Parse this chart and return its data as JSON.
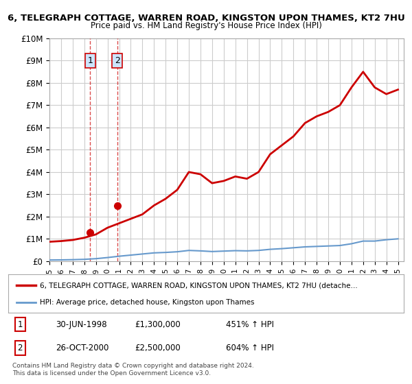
{
  "title1": "6, TELEGRAPH COTTAGE, WARREN ROAD, KINGSTON UPON THAMES, KT2 7HU",
  "title2": "Price paid vs. HM Land Registry's House Price Index (HPI)",
  "sale_dates": [
    "1998-06-30",
    "2000-10-26"
  ],
  "sale_prices": [
    1300000,
    2500000
  ],
  "sale_labels": [
    "1",
    "2"
  ],
  "table_rows": [
    [
      "1",
      "30-JUN-1998",
      "£1,300,000",
      "451% ↑ HPI"
    ],
    [
      "2",
      "26-OCT-2000",
      "£2,500,000",
      "604% ↑ HPI"
    ]
  ],
  "legend_line1": "6, TELEGRAPH COTTAGE, WARREN ROAD, KINGSTON UPON THAMES, KT2 7HU (detache…",
  "legend_line2": "HPI: Average price, detached house, Kingston upon Thames",
  "footnote": "Contains HM Land Registry data © Crown copyright and database right 2024.\nThis data is licensed under the Open Government Licence v3.0.",
  "line_color": "#cc0000",
  "hpi_color": "#6699cc",
  "background_color": "#ffffff",
  "grid_color": "#cccccc",
  "ylim": [
    0,
    10000000
  ],
  "yticks": [
    0,
    1000000,
    2000000,
    3000000,
    4000000,
    5000000,
    6000000,
    7000000,
    8000000,
    9000000,
    10000000
  ],
  "ytick_labels": [
    "£0",
    "£1M",
    "£2M",
    "£3M",
    "£4M",
    "£5M",
    "£6M",
    "£7M",
    "£8M",
    "£9M",
    "£10M"
  ],
  "hpi_adjusted_years": [
    1995,
    1996,
    1997,
    1998,
    1999,
    2000,
    2001,
    2002,
    2003,
    2004,
    2005,
    2006,
    2007,
    2008,
    2009,
    2010,
    2011,
    2012,
    2013,
    2014,
    2015,
    2016,
    2017,
    2018,
    2019,
    2020,
    2021,
    2022,
    2023,
    2024,
    2025
  ],
  "hpi_adjusted_values": [
    870000,
    900000,
    950000,
    1050000,
    1200000,
    1500000,
    1700000,
    1900000,
    2100000,
    2500000,
    2800000,
    3200000,
    4000000,
    3900000,
    3500000,
    3600000,
    3800000,
    3700000,
    4000000,
    4800000,
    5200000,
    5600000,
    6200000,
    6500000,
    6700000,
    7000000,
    7800000,
    8500000,
    7800000,
    7500000,
    7700000
  ],
  "hpi_line_years": [
    1995,
    1996,
    1997,
    1998,
    1999,
    2000,
    2001,
    2002,
    2003,
    2004,
    2005,
    2006,
    2007,
    2008,
    2009,
    2010,
    2011,
    2012,
    2013,
    2014,
    2015,
    2016,
    2017,
    2018,
    2019,
    2020,
    2021,
    2022,
    2023,
    2024,
    2025
  ],
  "hpi_line_values": [
    50000,
    55000,
    65000,
    80000,
    110000,
    160000,
    220000,
    270000,
    320000,
    370000,
    390000,
    420000,
    480000,
    460000,
    430000,
    450000,
    470000,
    460000,
    480000,
    530000,
    560000,
    600000,
    640000,
    660000,
    680000,
    700000,
    780000,
    900000,
    900000,
    960000,
    1000000
  ],
  "xmin": 1995,
  "xmax": 2025.5
}
